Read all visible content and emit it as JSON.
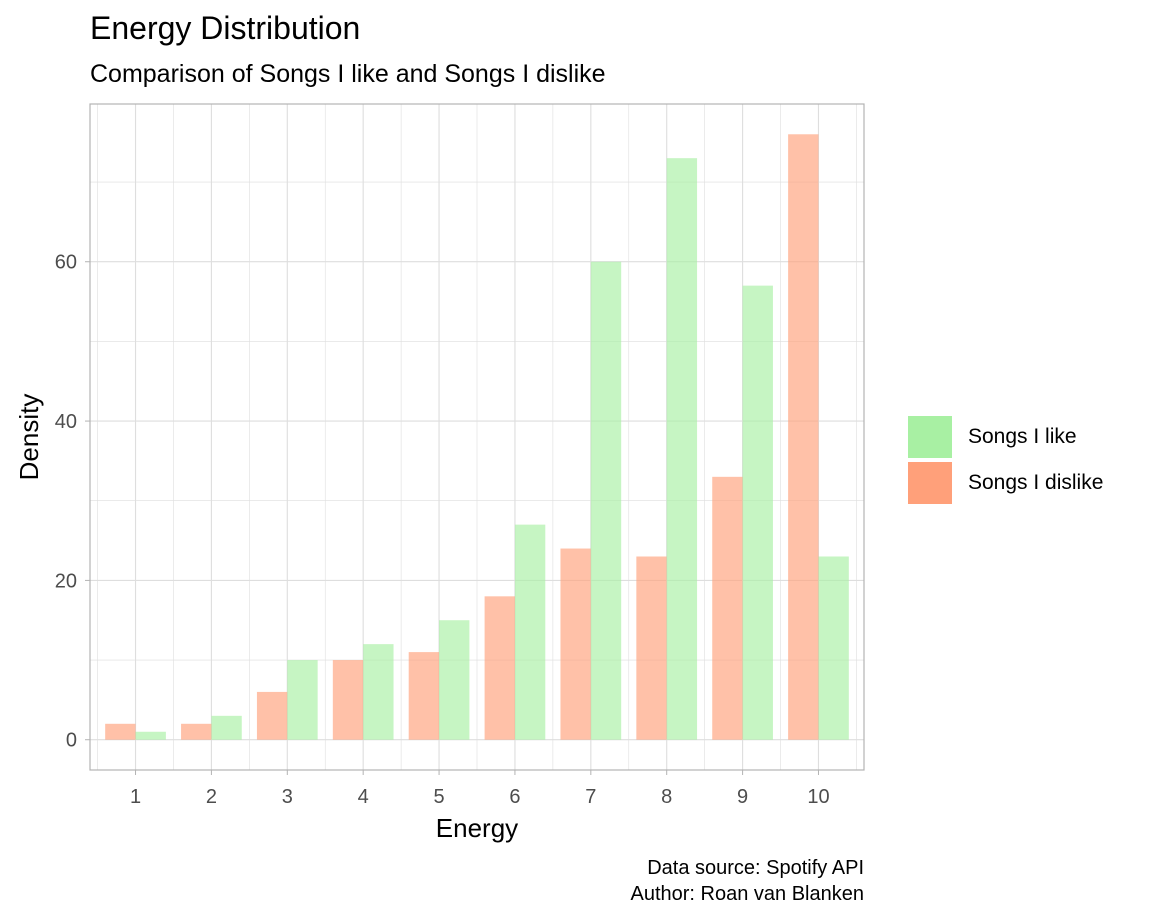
{
  "title": "Energy Distribution",
  "subtitle": "Comparison of Songs I like and Songs I dislike",
  "caption": {
    "line1": "Data source: Spotify API",
    "line2": "Author: Roan van Blanken"
  },
  "colors": {
    "like": "#a8f0a3",
    "dislike": "#ffa07a",
    "grid": "#dedede",
    "panel_border": "#b3b3b3"
  },
  "chart_data": {
    "type": "bar",
    "categories": [
      "1",
      "2",
      "3",
      "4",
      "5",
      "6",
      "7",
      "8",
      "9",
      "10"
    ],
    "series": [
      {
        "name": "Songs I dislike",
        "values": [
          2,
          2,
          6,
          10,
          11,
          18,
          24,
          23,
          33,
          76
        ]
      },
      {
        "name": "Songs I like",
        "values": [
          1,
          3,
          10,
          12,
          15,
          27,
          60,
          73,
          57,
          23
        ]
      }
    ],
    "xlabel": "Energy",
    "ylabel": "Density",
    "ylim": [
      -3.8,
      79.8
    ],
    "yticks": [
      0,
      20,
      40,
      60
    ],
    "legend_position": "right",
    "grid": true
  }
}
